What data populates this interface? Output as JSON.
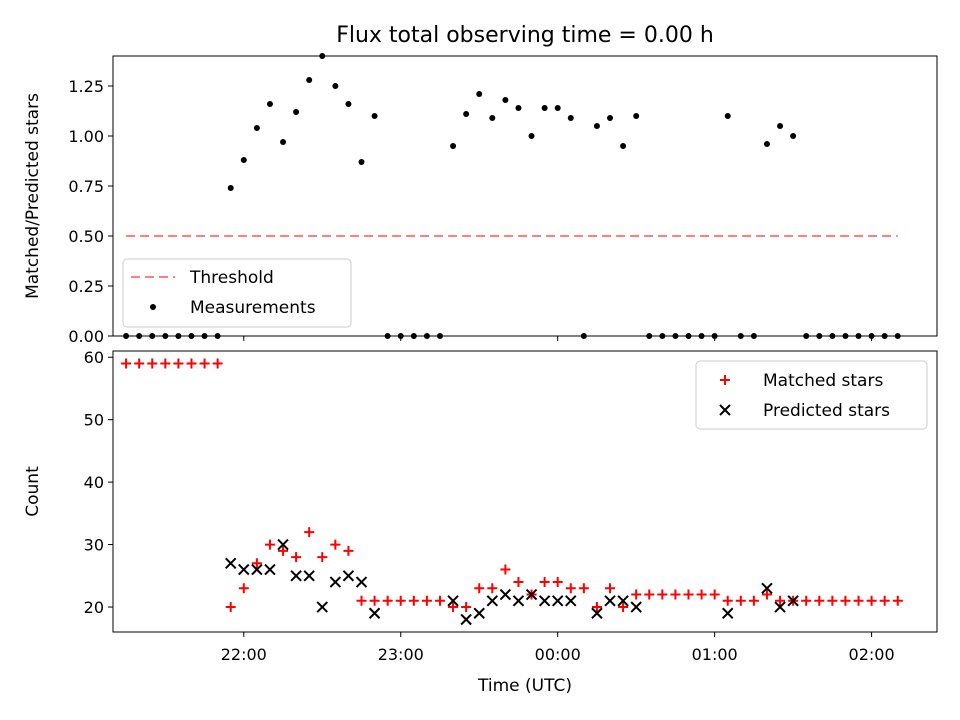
{
  "title": "Flux total observing time = 0.00 h",
  "xlabel": "Time (UTC)",
  "colors": {
    "threshold": "#ff7f7f",
    "measurements": "#000000",
    "matched": "#ff0000",
    "predicted": "#000000"
  },
  "chart_data": [
    {
      "type": "scatter",
      "title": "Flux total observing time = 0.00 h",
      "xlabel": "",
      "ylabel": "Matched/Predicted stars",
      "xlim": [
        "21:10",
        "02:25"
      ],
      "ylim": [
        0,
        1.4
      ],
      "yticks": [
        "0.00",
        "0.25",
        "0.50",
        "0.75",
        "1.00",
        "1.25"
      ],
      "xticks": [
        "22:00",
        "23:00",
        "00:00",
        "01:00",
        "02:00"
      ],
      "legend": {
        "placement": "lower-left",
        "entries": [
          "Threshold",
          "Measurements"
        ]
      },
      "threshold": {
        "name": "Threshold",
        "value": 0.5,
        "x_range": [
          "21:15",
          "02:10"
        ]
      },
      "series": [
        {
          "name": "Measurements",
          "points": [
            [
              "21:15",
              0
            ],
            [
              "21:20",
              0
            ],
            [
              "21:25",
              0
            ],
            [
              "21:30",
              0
            ],
            [
              "21:35",
              0
            ],
            [
              "21:40",
              0
            ],
            [
              "21:45",
              0
            ],
            [
              "21:50",
              0
            ],
            [
              "21:55",
              0.74
            ],
            [
              "22:00",
              0.88
            ],
            [
              "22:05",
              1.04
            ],
            [
              "22:10",
              1.16
            ],
            [
              "22:15",
              0.97
            ],
            [
              "22:20",
              1.12
            ],
            [
              "22:25",
              1.28
            ],
            [
              "22:30",
              1.4
            ],
            [
              "22:35",
              1.25
            ],
            [
              "22:40",
              1.16
            ],
            [
              "22:45",
              0.87
            ],
            [
              "22:50",
              1.1
            ],
            [
              "22:55",
              0
            ],
            [
              "23:00",
              0
            ],
            [
              "23:05",
              0
            ],
            [
              "23:10",
              0
            ],
            [
              "23:15",
              0
            ],
            [
              "23:20",
              0.95
            ],
            [
              "23:25",
              1.11
            ],
            [
              "23:30",
              1.21
            ],
            [
              "23:35",
              1.09
            ],
            [
              "23:40",
              1.18
            ],
            [
              "23:45",
              1.14
            ],
            [
              "23:50",
              1.0
            ],
            [
              "23:55",
              1.14
            ],
            [
              "00:00",
              1.14
            ],
            [
              "00:05",
              1.09
            ],
            [
              "00:10",
              0
            ],
            [
              "00:15",
              1.05
            ],
            [
              "00:20",
              1.09
            ],
            [
              "00:25",
              0.95
            ],
            [
              "00:30",
              1.1
            ],
            [
              "00:35",
              0
            ],
            [
              "00:40",
              0
            ],
            [
              "00:45",
              0
            ],
            [
              "00:50",
              0
            ],
            [
              "00:55",
              0
            ],
            [
              "01:00",
              0
            ],
            [
              "01:05",
              1.1
            ],
            [
              "01:10",
              0
            ],
            [
              "01:15",
              0
            ],
            [
              "01:20",
              0.96
            ],
            [
              "01:25",
              1.05
            ],
            [
              "01:30",
              1.0
            ],
            [
              "01:35",
              0
            ],
            [
              "01:40",
              0
            ],
            [
              "01:45",
              0
            ],
            [
              "01:50",
              0
            ],
            [
              "01:55",
              0
            ],
            [
              "02:00",
              0
            ],
            [
              "02:05",
              0
            ],
            [
              "02:10",
              0
            ]
          ]
        }
      ]
    },
    {
      "type": "scatter",
      "xlabel": "Time (UTC)",
      "ylabel": "Count",
      "xlim": [
        "21:10",
        "02:25"
      ],
      "ylim": [
        16,
        61
      ],
      "yticks": [
        "20",
        "30",
        "40",
        "50",
        "60"
      ],
      "xticks": [
        "22:00",
        "23:00",
        "00:00",
        "01:00",
        "02:00"
      ],
      "legend": {
        "placement": "upper-right",
        "entries": [
          "Matched stars",
          "Predicted stars"
        ]
      },
      "series": [
        {
          "name": "Matched stars",
          "points": [
            [
              "21:15",
              59
            ],
            [
              "21:20",
              59
            ],
            [
              "21:25",
              59
            ],
            [
              "21:30",
              59
            ],
            [
              "21:35",
              59
            ],
            [
              "21:40",
              59
            ],
            [
              "21:45",
              59
            ],
            [
              "21:50",
              59
            ],
            [
              "21:55",
              20
            ],
            [
              "22:00",
              23
            ],
            [
              "22:05",
              27
            ],
            [
              "22:10",
              30
            ],
            [
              "22:15",
              29
            ],
            [
              "22:20",
              28
            ],
            [
              "22:25",
              32
            ],
            [
              "22:30",
              28
            ],
            [
              "22:35",
              30
            ],
            [
              "22:40",
              29
            ],
            [
              "22:45",
              21
            ],
            [
              "22:50",
              21
            ],
            [
              "22:55",
              21
            ],
            [
              "23:00",
              21
            ],
            [
              "23:05",
              21
            ],
            [
              "23:10",
              21
            ],
            [
              "23:15",
              21
            ],
            [
              "23:20",
              20
            ],
            [
              "23:25",
              20
            ],
            [
              "23:30",
              23
            ],
            [
              "23:35",
              23
            ],
            [
              "23:40",
              26
            ],
            [
              "23:45",
              24
            ],
            [
              "23:50",
              22
            ],
            [
              "23:55",
              24
            ],
            [
              "00:00",
              24
            ],
            [
              "00:05",
              23
            ],
            [
              "00:10",
              23
            ],
            [
              "00:15",
              20
            ],
            [
              "00:20",
              23
            ],
            [
              "00:25",
              20
            ],
            [
              "00:30",
              22
            ],
            [
              "00:35",
              22
            ],
            [
              "00:40",
              22
            ],
            [
              "00:45",
              22
            ],
            [
              "00:50",
              22
            ],
            [
              "00:55",
              22
            ],
            [
              "01:00",
              22
            ],
            [
              "01:05",
              21
            ],
            [
              "01:10",
              21
            ],
            [
              "01:15",
              21
            ],
            [
              "01:20",
              22
            ],
            [
              "01:25",
              21
            ],
            [
              "01:30",
              21
            ],
            [
              "01:35",
              21
            ],
            [
              "01:40",
              21
            ],
            [
              "01:45",
              21
            ],
            [
              "01:50",
              21
            ],
            [
              "01:55",
              21
            ],
            [
              "02:00",
              21
            ],
            [
              "02:05",
              21
            ],
            [
              "02:10",
              21
            ]
          ]
        },
        {
          "name": "Predicted stars",
          "points": [
            [
              "21:55",
              27
            ],
            [
              "22:00",
              26
            ],
            [
              "22:05",
              26
            ],
            [
              "22:10",
              26
            ],
            [
              "22:15",
              30
            ],
            [
              "22:20",
              25
            ],
            [
              "22:25",
              25
            ],
            [
              "22:30",
              20
            ],
            [
              "22:35",
              24
            ],
            [
              "22:40",
              25
            ],
            [
              "22:45",
              24
            ],
            [
              "22:50",
              19
            ],
            [
              "23:20",
              21
            ],
            [
              "23:25",
              18
            ],
            [
              "23:30",
              19
            ],
            [
              "23:35",
              21
            ],
            [
              "23:40",
              22
            ],
            [
              "23:45",
              21
            ],
            [
              "23:50",
              22
            ],
            [
              "23:55",
              21
            ],
            [
              "00:00",
              21
            ],
            [
              "00:05",
              21
            ],
            [
              "00:15",
              19
            ],
            [
              "00:20",
              21
            ],
            [
              "00:25",
              21
            ],
            [
              "00:30",
              20
            ],
            [
              "01:05",
              19
            ],
            [
              "01:20",
              23
            ],
            [
              "01:25",
              20
            ],
            [
              "01:30",
              21
            ]
          ]
        }
      ]
    }
  ]
}
